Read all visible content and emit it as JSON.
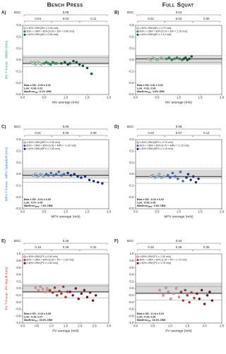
{
  "column_titles": [
    "Bench Press",
    "Full Squat"
  ],
  "chart_data": [
    {
      "type": "scatter",
      "panel": "A)",
      "sdc_label": "SDC:",
      "sdc_total": 0.08,
      "sdc_segments": [
        0.04,
        0.04,
        0.11
      ],
      "ylabel": "MV T-Force - 3DMA (m/s)",
      "ylabel_color": "#2e9e57",
      "xlabel": "MV average (m/s)",
      "xlim": [
        0,
        2
      ],
      "xticks": [
        {
          "value": 0,
          "label": "0.0"
        },
        0.5,
        {
          "value": 1,
          "label": "1.0"
        },
        1.5,
        {
          "value": 2,
          "label": "2.0"
        }
      ],
      "ylim": [
        -0.3,
        0.3
      ],
      "yticks": [
        -0.3,
        -0.2,
        -0.1,
        {
          "value": 0,
          "label": "0.0"
        },
        0.1,
        0.2,
        0.3
      ],
      "shaded_band": [
        -0.04,
        0.04
      ],
      "bias": -0.03,
      "loa": [
        -0.06,
        0.02
      ],
      "stats": {
        "bias": "Bias ± SD: -0.03 ± 0.02",
        "loa": "LoA: -0.06, 0.02",
        "max_error": "MaxError",
        "max_error_sub": "MV",
        "max_error_value": ": 6.1% 1RM"
      },
      "series": [
        {
          "name": "≥ 80% 1RM [MV ≤ 0.45 m/s]",
          "color": "#b8e0c2",
          "x": [
            0.2,
            0.24,
            0.28,
            0.3,
            0.33,
            0.36,
            0.4,
            0.43
          ],
          "values": [
            -0.02,
            -0.03,
            -0.02,
            -0.04,
            -0.03,
            -0.02,
            -0.03,
            -0.04
          ]
        },
        {
          "name": "60% < 1RM < 80% [0.45 < MV < 0.80 m/s]",
          "color": "#2e9e57",
          "x": [
            0.5,
            0.55,
            0.6,
            0.65,
            0.7,
            0.75,
            0.79
          ],
          "values": [
            -0.03,
            -0.02,
            -0.03,
            -0.04,
            -0.02,
            -0.03,
            -0.03
          ]
        },
        {
          "name": "≤ 60% 1RM [MV ≥ 0.80 m/s]",
          "color": "#0b5d2a",
          "x": [
            0.9,
            0.98,
            1.05,
            1.1,
            1.18,
            1.25,
            1.32,
            1.4,
            1.5,
            1.6
          ],
          "values": [
            -0.03,
            -0.02,
            -0.04,
            -0.03,
            -0.01,
            -0.02,
            -0.04,
            -0.05,
            -0.07,
            -0.12
          ]
        }
      ]
    },
    {
      "type": "scatter",
      "panel": "B)",
      "sdc_label": "SDC:",
      "sdc_total": 0.04,
      "sdc_segments": [
        0.02,
        0.03,
        0.06
      ],
      "xlabel": "MV average (m/s)",
      "xlim": [
        0,
        2
      ],
      "xticks": [
        {
          "value": 0,
          "label": "0.0"
        },
        0.5,
        {
          "value": 1,
          "label": "1.0"
        },
        1.5,
        {
          "value": 2,
          "label": "2.0"
        }
      ],
      "ylim": [
        -0.3,
        0.3
      ],
      "yticks": [
        -0.3,
        -0.2,
        -0.1,
        {
          "value": 0,
          "label": "0.0"
        },
        0.1,
        0.2,
        0.3
      ],
      "shaded_band": [
        -0.04,
        0.04
      ],
      "bias": 0.01,
      "loa": [
        -0.02,
        0.04
      ],
      "stats": {
        "bias": "Bias ± SD: 0.01 ± 0.02",
        "loa": "LoA: -0.02, 0.04",
        "max_error": "MaxError",
        "max_error_sub": "MV",
        "max_error_value": ": 4.5% 1RM"
      },
      "series": [
        {
          "name": "≥ 80% 1RM [MV ≤ 0.70 m/s]",
          "color": "#b8e0c2",
          "x": [
            0.3,
            0.35,
            0.4,
            0.45,
            0.5,
            0.55,
            0.6,
            0.66
          ],
          "values": [
            0.01,
            0.0,
            0.02,
            0.01,
            0.0,
            0.01,
            0.02,
            0.01
          ]
        },
        {
          "name": "60% < 1RM < 80% [0.70 < MV < 1.10 m/s]",
          "color": "#2e9e57",
          "x": [
            0.72,
            0.78,
            0.84,
            0.9,
            0.96,
            1.02,
            1.08
          ],
          "values": [
            0.01,
            0.02,
            0.0,
            0.01,
            0.02,
            0.01,
            0.0
          ]
        },
        {
          "name": "≤ 60% 1RM [MV ≥ 1.10 m/s]",
          "color": "#0b5d2a",
          "x": [
            1.12,
            1.16,
            1.2,
            1.25,
            1.3
          ],
          "values": [
            0.01,
            0.02,
            0.0,
            0.01,
            0.03
          ]
        }
      ]
    },
    {
      "type": "scatter",
      "panel": "C)",
      "sdc_label": "SDC:",
      "sdc_total": 0.06,
      "sdc_segments": [
        0.01,
        0.05,
        0.09
      ],
      "ylabel": "MPV T-Force - MPV SpeedLift (m/s)",
      "ylabel_color": "#3a78c9",
      "xlabel": "MPV average (m/s)",
      "xlim": [
        0,
        2
      ],
      "xticks": [
        {
          "value": 0,
          "label": "0.0"
        },
        0.5,
        {
          "value": 1,
          "label": "1.0"
        },
        1.5,
        {
          "value": 2,
          "label": "2.0"
        }
      ],
      "ylim": [
        -0.3,
        0.3
      ],
      "yticks": [
        -0.3,
        -0.2,
        -0.1,
        {
          "value": 0,
          "label": "0.0"
        },
        0.1,
        0.2,
        0.3
      ],
      "shaded_band": [
        -0.04,
        0.04
      ],
      "bias": -0.01,
      "loa": [
        -0.07,
        0.05
      ],
      "stats": {
        "bias": "Bias ± SD: -0.01 ± 0.03",
        "loa": "LoA: -0.07, 0.05",
        "max_error": "MaxError",
        "max_error_sub": "MPV",
        "max_error_value": ": 7.9% 1RM"
      },
      "series": [
        {
          "name": "≥ 80% 1RM [MPV ≤ 0.50 m/s]",
          "color": "#a9c6ea",
          "x": [
            0.25,
            0.3,
            0.34,
            0.38,
            0.42,
            0.46,
            0.49
          ],
          "values": [
            -0.01,
            0.0,
            -0.02,
            -0.01,
            0.0,
            -0.01,
            -0.02
          ]
        },
        {
          "name": "60% < 1RM < 80% [0.50 < MPV < 1.00 m/s]",
          "color": "#3a78c9",
          "x": [
            0.55,
            0.6,
            0.66,
            0.72,
            0.78,
            0.84,
            0.9,
            0.96
          ],
          "values": [
            0.0,
            -0.01,
            0.01,
            -0.01,
            0.0,
            0.02,
            -0.01,
            0.0
          ]
        },
        {
          "name": "≤ 60% 1RM [MPV ≥ 1.00 m/s]",
          "color": "#0d2a8a",
          "x": [
            1.05,
            1.12,
            1.2,
            1.28,
            1.36,
            1.45,
            1.55,
            1.65,
            1.75,
            1.85
          ],
          "values": [
            0.01,
            -0.01,
            0.0,
            -0.02,
            -0.03,
            -0.02,
            -0.05,
            -0.06,
            -0.07,
            -0.08
          ]
        }
      ]
    },
    {
      "type": "scatter",
      "panel": "D)",
      "sdc_label": "SDC:",
      "sdc_total": 0.08,
      "sdc_segments": [
        0.03,
        0.07,
        0.12
      ],
      "xlabel": "MPV average (m/s)",
      "xlim": [
        0,
        2
      ],
      "xticks": [
        {
          "value": 0,
          "label": "0.0"
        },
        0.5,
        {
          "value": 1,
          "label": "1.0"
        },
        1.5,
        {
          "value": 2,
          "label": "2.0"
        }
      ],
      "ylim": [
        -0.3,
        0.3
      ],
      "yticks": [
        -0.3,
        -0.2,
        -0.1,
        {
          "value": 0,
          "label": "0.0"
        },
        0.1,
        0.2,
        0.3
      ],
      "shaded_band": [
        -0.04,
        0.04
      ],
      "bias": -0.02,
      "loa": [
        -0.08,
        0.05
      ],
      "stats": {
        "bias": "Bias ± SD: -0.02 ± 0.03",
        "loa": "LoA: -0.08, 0.05",
        "max_error": "MaxError",
        "max_error_sub": "MPV",
        "max_error_value": ": 9.5% 1RM"
      },
      "series": [
        {
          "name": "≥ 80% 1RM [MPV ≤ 0.70 m/s]",
          "color": "#a9c6ea",
          "x": [
            0.35,
            0.4,
            0.45,
            0.5,
            0.55,
            0.6,
            0.66
          ],
          "values": [
            -0.02,
            -0.01,
            -0.03,
            -0.02,
            0.0,
            -0.03,
            -0.02
          ]
        },
        {
          "name": "60% < 1RM < 80% [0.70 < MPV < 1.15 m/s]",
          "color": "#3a78c9",
          "x": [
            0.75,
            0.8,
            0.86,
            0.92,
            0.98,
            1.04,
            1.1
          ],
          "values": [
            -0.01,
            -0.03,
            0.01,
            -0.02,
            -0.04,
            0.02,
            -0.06
          ]
        },
        {
          "name": "≤ 60% 1RM [MPV ≥ 1.15 m/s]",
          "color": "#0d2a8a",
          "x": [
            1.18,
            1.22,
            1.28,
            1.34,
            1.4,
            1.46
          ],
          "values": [
            -0.03,
            0.0,
            -0.05,
            -0.02,
            -0.07,
            -0.04
          ]
        }
      ]
    },
    {
      "type": "scatter",
      "panel": "E)",
      "sdc_label": "SDC:",
      "sdc_total": 0.26,
      "sdc_segments": [
        0.18,
        0.28,
        0.31
      ],
      "ylabel": "PV T-Force - PV MyLift (m/s)",
      "ylabel_color": "#c0392b",
      "xlabel": "PV average (m/s)",
      "xlim": [
        0,
        3
      ],
      "xticks": [
        {
          "value": 0,
          "label": "0.0"
        },
        0.5,
        {
          "value": 1,
          "label": "1.0"
        },
        1.5,
        {
          "value": 2,
          "label": "2.0"
        },
        2.5,
        {
          "value": 3,
          "label": "3.0"
        }
      ],
      "ylim": [
        -1,
        1
      ],
      "yticks": [
        {
          "value": -1,
          "label": "-1.0"
        },
        -0.8,
        -0.6,
        -0.4,
        -0.2,
        {
          "value": 0,
          "label": "0.0"
        },
        0.2,
        0.4,
        0.6,
        0.8,
        {
          "value": 1,
          "label": "1.0"
        }
      ],
      "shaded_band": [
        -0.13,
        0.13
      ],
      "bias": -0.1,
      "loa": [
        -0.28,
        0.07
      ],
      "stats": {
        "bias": "Bias ± SD: -0.10 ± 0.09",
        "loa": "LoA: -0.28, 0.07",
        "max_error": "MaxError",
        "max_error_sub": "PV",
        "max_error_value": ": 19.4% 1RM"
      },
      "series": [
        {
          "name": "≥ 80% 1RM [PV ≤ 0.90 m/s]",
          "color": "#e8a6a6",
          "x": [
            0.45,
            0.55,
            0.62,
            0.7,
            0.78,
            0.85,
            0.88
          ],
          "values": [
            0.02,
            -0.05,
            0.05,
            -0.02,
            -0.1,
            0.0,
            -0.08
          ]
        },
        {
          "name": "60% < 1RM < 80% [0.90 < PV < 1.60 m/s]",
          "color": "#c0392b",
          "x": [
            0.95,
            1.05,
            1.12,
            1.2,
            1.28,
            1.35,
            1.42,
            1.5,
            1.56
          ],
          "values": [
            -0.05,
            -0.12,
            0.02,
            -0.2,
            -0.08,
            -0.15,
            0.05,
            -0.25,
            -0.1
          ]
        },
        {
          "name": "≤ 60% 1RM [PV ≥ 1.60 m/s]",
          "color": "#7a0f16",
          "x": [
            1.65,
            1.75,
            1.85,
            1.95,
            2.05,
            2.15,
            2.25,
            2.35,
            2.45,
            2.55
          ],
          "values": [
            -0.1,
            -0.2,
            0.0,
            -0.3,
            -0.15,
            -0.05,
            -0.25,
            -0.12,
            -0.35,
            -0.2
          ]
        }
      ]
    },
    {
      "type": "scatter",
      "panel": "F)",
      "sdc_label": "SDC:",
      "sdc_total": 0.34,
      "sdc_segments": [
        0.25,
        0.35,
        0.35
      ],
      "xlabel": "PV average (m/s)",
      "xlim": [
        0,
        2.5
      ],
      "xticks": [
        {
          "value": 0,
          "label": "0.0"
        },
        0.5,
        {
          "value": 1,
          "label": "1.0"
        },
        1.5,
        {
          "value": 2,
          "label": "2.0"
        },
        2.5
      ],
      "ylim": [
        -1,
        1
      ],
      "yticks": [
        {
          "value": -1,
          "label": "-1.0"
        },
        -0.8,
        -0.6,
        -0.4,
        -0.2,
        {
          "value": 0,
          "label": "0.0"
        },
        0.2,
        0.4,
        0.6,
        0.8,
        {
          "value": 1,
          "label": "1.0"
        }
      ],
      "shaded_band": [
        -0.17,
        0.17
      ],
      "bias": -0.14,
      "loa": [
        -0.34,
        0.05
      ],
      "stats": {
        "bias": "Bias ± SD: -0.14 ± 0.10",
        "loa": "LoA: -0.34, 0.05",
        "max_error": "MaxError",
        "max_error_sub": "PV",
        "max_error_value": ": 24.3% 1RM"
      },
      "series": [
        {
          "name": "≥ 80% 1RM [PV ≤ 1.30 m/s]",
          "color": "#e8a6a6",
          "x": [
            0.7,
            0.8,
            0.88,
            0.95,
            1.02,
            1.1,
            1.18,
            1.26
          ],
          "values": [
            -0.05,
            -0.2,
            0.02,
            -0.1,
            -0.3,
            -0.15,
            0.0,
            -0.25
          ]
        },
        {
          "name": "60% < 1RM < 80% [1.30 < PV < 1.75 m/s]",
          "color": "#c0392b",
          "x": [
            1.32,
            1.38,
            1.44,
            1.5,
            1.56,
            1.62,
            1.7
          ],
          "values": [
            -0.1,
            -0.35,
            -0.05,
            -0.2,
            -0.4,
            -0.12,
            -0.28
          ]
        },
        {
          "name": "≤ 60% 1RM [PV ≥ 1.75 m/s]",
          "color": "#7a0f16",
          "x": [
            1.78,
            1.85,
            1.92,
            2.0,
            2.08,
            2.15,
            2.22
          ],
          "values": [
            -0.15,
            -0.3,
            -0.05,
            -0.45,
            -0.2,
            -0.1,
            -0.35
          ]
        }
      ]
    }
  ]
}
